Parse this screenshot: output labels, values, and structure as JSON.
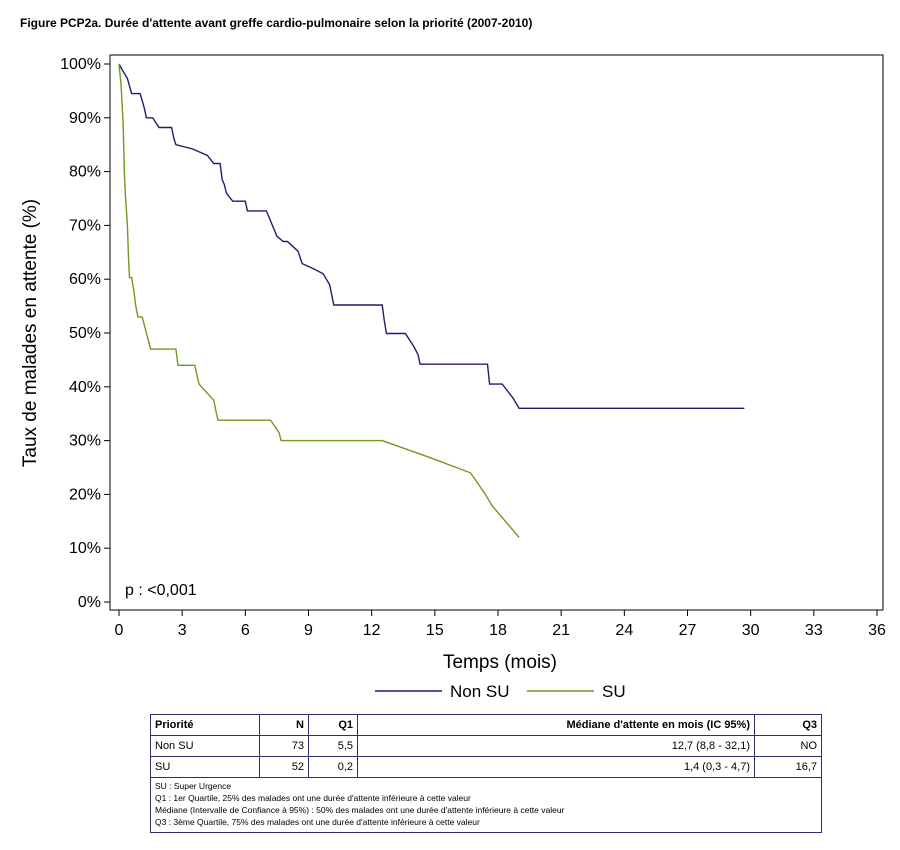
{
  "title": "Figure PCP2a. Durée d'attente avant greffe cardio-pulmonaire selon la priorité (2007-2010)",
  "chart_data": {
    "type": "line",
    "xlabel": "Temps (mois)",
    "ylabel": "Taux de malades en attente (%)",
    "xlim": [
      0,
      36
    ],
    "ylim": [
      0,
      100
    ],
    "x_ticks": [
      "0",
      "3",
      "6",
      "9",
      "12",
      "15",
      "18",
      "21",
      "24",
      "27",
      "30",
      "33",
      "36"
    ],
    "y_ticks": [
      "0%",
      "10%",
      "20%",
      "30%",
      "40%",
      "50%",
      "60%",
      "70%",
      "80%",
      "90%",
      "100%"
    ],
    "annotation": "p : <0,001",
    "legend_position": "bottom",
    "series": [
      {
        "name": "Non SU",
        "color": "#1f1f6b",
        "points": [
          [
            0,
            100
          ],
          [
            0.2,
            98.6
          ],
          [
            0.4,
            97.3
          ],
          [
            0.5,
            95.9
          ],
          [
            0.6,
            94.5
          ],
          [
            1.0,
            94.5
          ],
          [
            1.1,
            93.2
          ],
          [
            1.2,
            91.8
          ],
          [
            1.3,
            90.0
          ],
          [
            1.6,
            90.0
          ],
          [
            1.9,
            88.2
          ],
          [
            2.5,
            88.2
          ],
          [
            2.6,
            86.3
          ],
          [
            2.7,
            85.0
          ],
          [
            3.5,
            84.2
          ],
          [
            4.2,
            83.0
          ],
          [
            4.5,
            81.5
          ],
          [
            4.8,
            81.5
          ],
          [
            4.9,
            78.5
          ],
          [
            5.0,
            77.6
          ],
          [
            5.1,
            76.0
          ],
          [
            5.4,
            74.5
          ],
          [
            6.0,
            74.5
          ],
          [
            6.1,
            72.7
          ],
          [
            7.0,
            72.7
          ],
          [
            7.5,
            68.0
          ],
          [
            7.8,
            67.0
          ],
          [
            8.0,
            67.0
          ],
          [
            8.5,
            65.2
          ],
          [
            8.7,
            62.9
          ],
          [
            9.2,
            62.0
          ],
          [
            9.7,
            61.0
          ],
          [
            10.0,
            59.0
          ],
          [
            10.2,
            55.2
          ],
          [
            12.5,
            55.2
          ],
          [
            12.6,
            52.3
          ],
          [
            12.7,
            49.9
          ],
          [
            13.6,
            49.9
          ],
          [
            14.0,
            47.5
          ],
          [
            14.2,
            46.0
          ],
          [
            14.3,
            44.2
          ],
          [
            17.5,
            44.2
          ],
          [
            17.6,
            40.5
          ],
          [
            18.2,
            40.5
          ],
          [
            18.7,
            38.0
          ],
          [
            19.0,
            36.0
          ],
          [
            29.7,
            36.0
          ]
        ]
      },
      {
        "name": "SU",
        "color": "#6f9a1e",
        "points": [
          [
            0,
            100
          ],
          [
            0.1,
            96.0
          ],
          [
            0.15,
            92.3
          ],
          [
            0.2,
            88.5
          ],
          [
            0.25,
            80.0
          ],
          [
            0.3,
            76.0
          ],
          [
            0.4,
            70.0
          ],
          [
            0.45,
            64.0
          ],
          [
            0.5,
            60.3
          ],
          [
            0.6,
            60.3
          ],
          [
            0.7,
            58.0
          ],
          [
            0.8,
            55.0
          ],
          [
            0.9,
            53.0
          ],
          [
            1.1,
            53.0
          ],
          [
            1.2,
            51.5
          ],
          [
            1.3,
            50.0
          ],
          [
            1.5,
            47.0
          ],
          [
            2.7,
            47.0
          ],
          [
            2.8,
            44.0
          ],
          [
            3.6,
            44.0
          ],
          [
            3.8,
            40.5
          ],
          [
            4.5,
            37.5
          ],
          [
            4.6,
            35.5
          ],
          [
            4.7,
            33.8
          ],
          [
            7.2,
            33.8
          ],
          [
            7.6,
            31.5
          ],
          [
            7.7,
            30.0
          ],
          [
            12.5,
            30.0
          ],
          [
            14.8,
            26.8
          ],
          [
            16.7,
            24.0
          ],
          [
            17.4,
            20.0
          ],
          [
            17.7,
            18.0
          ],
          [
            19.0,
            12.0
          ]
        ]
      }
    ]
  },
  "table": {
    "headers": [
      "Priorité",
      "N",
      "Q1",
      "Médiane d'attente en mois (IC 95%)",
      "Q3"
    ],
    "rows": [
      [
        "Non SU",
        "73",
        "5,5",
        "12,7 (8,8 - 32,1)",
        "NO"
      ],
      [
        "SU",
        "52",
        "0,2",
        "1,4 (0,3 - 4,7)",
        "16,7"
      ]
    ],
    "notes": [
      "SU : Super Urgence",
      "Q1 : 1er Quartile, 25% des malades ont une durée d'attente inférieure à cette valeur",
      "Médiane (Intervalle de Confiance à 95%) : 50% des malades ont une durée d'attente inférieure à cette valeur",
      "Q3 : 3ème Quartile, 75% des malades ont une durée d'attente inférieure à cette valeur"
    ]
  }
}
